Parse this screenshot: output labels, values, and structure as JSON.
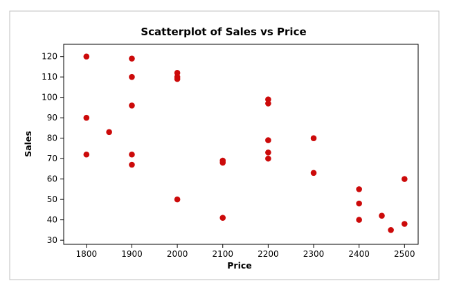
{
  "chart_data": {
    "type": "scatter",
    "title": "Scatterplot of Sales vs Price",
    "xlabel": "Price",
    "ylabel": "Sales",
    "xlim": [
      1750,
      2530
    ],
    "ylim": [
      28,
      126
    ],
    "xticks": [
      "1800",
      "1900",
      "2000",
      "2100",
      "2200",
      "2300",
      "2400",
      "2500"
    ],
    "yticks": [
      "30",
      "40",
      "50",
      "60",
      "70",
      "80",
      "90",
      "100",
      "110",
      "120"
    ],
    "grid": false,
    "legend": "none",
    "marker_color": "#cc0a0a",
    "points": [
      {
        "x": 1800,
        "y": 120
      },
      {
        "x": 1800,
        "y": 90
      },
      {
        "x": 1800,
        "y": 72
      },
      {
        "x": 1850,
        "y": 83
      },
      {
        "x": 1900,
        "y": 119
      },
      {
        "x": 1900,
        "y": 110
      },
      {
        "x": 1900,
        "y": 96
      },
      {
        "x": 1900,
        "y": 72
      },
      {
        "x": 1900,
        "y": 67
      },
      {
        "x": 2000,
        "y": 112
      },
      {
        "x": 2000,
        "y": 110
      },
      {
        "x": 2000,
        "y": 109
      },
      {
        "x": 2000,
        "y": 50
      },
      {
        "x": 2100,
        "y": 69
      },
      {
        "x": 2100,
        "y": 68
      },
      {
        "x": 2100,
        "y": 41
      },
      {
        "x": 2200,
        "y": 99
      },
      {
        "x": 2200,
        "y": 97
      },
      {
        "x": 2200,
        "y": 79
      },
      {
        "x": 2200,
        "y": 73
      },
      {
        "x": 2200,
        "y": 70
      },
      {
        "x": 2300,
        "y": 80
      },
      {
        "x": 2300,
        "y": 63
      },
      {
        "x": 2400,
        "y": 55
      },
      {
        "x": 2400,
        "y": 48
      },
      {
        "x": 2400,
        "y": 40
      },
      {
        "x": 2450,
        "y": 42
      },
      {
        "x": 2470,
        "y": 35
      },
      {
        "x": 2500,
        "y": 60
      },
      {
        "x": 2500,
        "y": 38
      }
    ]
  }
}
